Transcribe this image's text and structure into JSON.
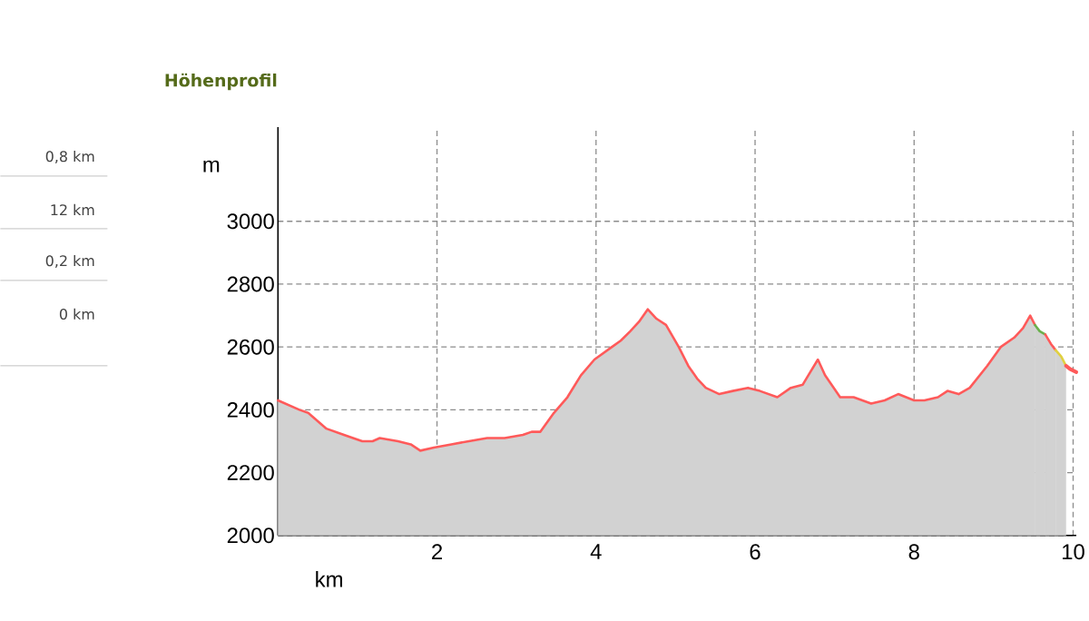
{
  "chart_data": {
    "type": "area",
    "title": "Höhenprofil",
    "xlabel": "km",
    "ylabel": "m",
    "xlim": [
      0,
      10.04
    ],
    "ylim": [
      2000,
      3300
    ],
    "xticks": [
      2,
      4,
      6,
      8,
      10
    ],
    "yticks": [
      2000,
      2200,
      2400,
      2600,
      2800,
      3000
    ],
    "grid": true,
    "marker": "none",
    "line_style": "solid",
    "annotations": [
      "0,8 km",
      "12 km",
      "0,2 km",
      "0 km"
    ],
    "series": [
      {
        "color": "#ff5a5a",
        "x": [
          0,
          0.27,
          0.38,
          0.61,
          0.83,
          1.06,
          1.19,
          1.28,
          1.51,
          1.67,
          1.79,
          1.96,
          2.18,
          2.4,
          2.63,
          2.85,
          3.08,
          3.19,
          3.3,
          3.47,
          3.64,
          3.81,
          3.98,
          4.2,
          4.31,
          4.43,
          4.54,
          4.65,
          4.76,
          4.88,
          5.04,
          5.16,
          5.27,
          5.38,
          5.55,
          5.72,
          5.91,
          6.06,
          6.28,
          6.45,
          6.6,
          6.67,
          6.79,
          6.88,
          7.07,
          7.24,
          7.46,
          7.63,
          7.8,
          8.0,
          8.13,
          8.3,
          8.42,
          8.56,
          8.7,
          8.92,
          9.09,
          9.26,
          9.37,
          9.46,
          9.52
        ],
        "values": [
          2430,
          2400,
          2390,
          2340,
          2320,
          2300,
          2300,
          2310,
          2300,
          2290,
          2270,
          2280,
          2290,
          2300,
          2310,
          2310,
          2320,
          2330,
          2330,
          2390,
          2440,
          2510,
          2560,
          2600,
          2620,
          2650,
          2680,
          2720,
          2690,
          2670,
          2600,
          2540,
          2500,
          2470,
          2450,
          2460,
          2470,
          2460,
          2440,
          2470,
          2480,
          2510,
          2560,
          2510,
          2440,
          2440,
          2420,
          2430,
          2450,
          2430,
          2430,
          2440,
          2460,
          2450,
          2470,
          2540,
          2600,
          2630,
          2660,
          2700,
          2670
        ]
      },
      {
        "color": "#6ab04c",
        "x": [
          9.52,
          9.58,
          9.65
        ],
        "values": [
          2670,
          2650,
          2640
        ]
      },
      {
        "color": "#ff5a5a",
        "x": [
          9.65,
          9.72,
          9.78
        ],
        "values": [
          2640,
          2610,
          2590
        ]
      },
      {
        "color": "#e0d040",
        "x": [
          9.78,
          9.85,
          9.91
        ],
        "values": [
          2590,
          2570,
          2540
        ]
      },
      {
        "type": "line",
        "color": "#ff5a5a",
        "x": [
          9.91,
          9.96,
          10.04
        ],
        "values": [
          2540,
          2530,
          2520
        ]
      }
    ]
  }
}
